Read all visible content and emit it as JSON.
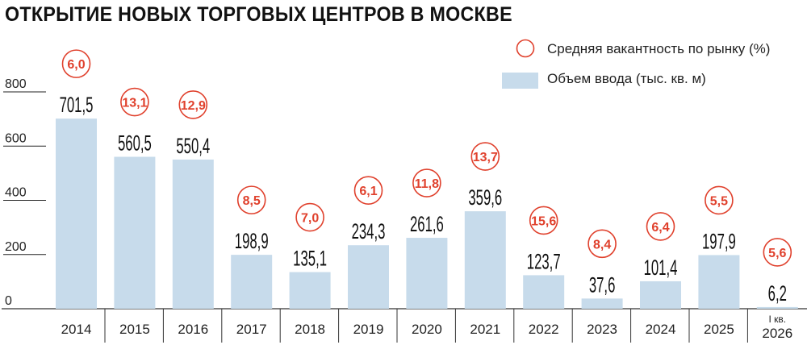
{
  "chart_data": {
    "type": "bar",
    "title": "ОТКРЫТИЕ НОВЫХ ТОРГОВЫХ ЦЕНТРОВ В МОСКВЕ",
    "categories": [
      "2014",
      "2015",
      "2016",
      "2017",
      "2018",
      "2019",
      "2020",
      "2021",
      "2022",
      "2023",
      "2024",
      "2025",
      "I кв. 2026"
    ],
    "series": [
      {
        "name": "Объем ввода (тыс. кв. м)",
        "kind": "bar",
        "color": "#c7dbeb",
        "values": [
          701.5,
          560.5,
          550.4,
          198.9,
          135.1,
          234.3,
          261.6,
          359.6,
          123.7,
          37.6,
          101.4,
          197.9,
          6.2
        ],
        "labels": [
          "701,5",
          "560,5",
          "550,4",
          "198,9",
          "135,1",
          "234,3",
          "261,6",
          "359,6",
          "123,7",
          "37,6",
          "101,4",
          "197,9",
          "6,2"
        ]
      },
      {
        "name": "Средняя вакантность по рынку (%)",
        "kind": "circle-label",
        "color": "#e0412d",
        "values": [
          6.0,
          13.1,
          12.9,
          8.5,
          7.0,
          6.1,
          11.8,
          13.7,
          15.6,
          8.4,
          6.4,
          5.5,
          5.6
        ],
        "labels": [
          "6,0",
          "13,1",
          "12,9",
          "8,5",
          "7,0",
          "6,1",
          "11,8",
          "13,7",
          "15,6",
          "8,4",
          "6,4",
          "5,5",
          "5,6"
        ]
      }
    ],
    "yticks": [
      "0",
      "200",
      "400",
      "600",
      "800"
    ],
    "ylim": [
      0,
      800
    ],
    "legend_position": "top-right",
    "grid": false
  }
}
